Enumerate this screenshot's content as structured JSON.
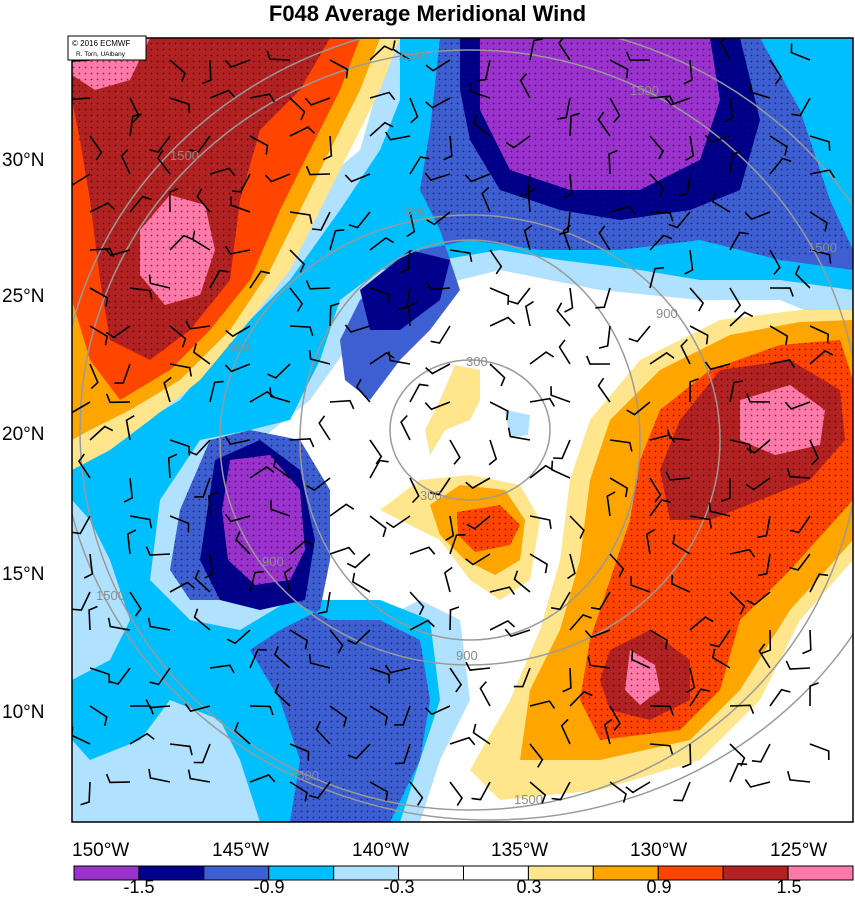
{
  "title": "F048 Average Meridional Wind",
  "credit": {
    "line1": "© 2016 ECMWF",
    "line2": "R. Torn, UAlbany"
  },
  "lat_labels": [
    "30°N",
    "25°N",
    "20°N",
    "15°N",
    "10°N"
  ],
  "lon_labels": [
    "150°W",
    "145°W",
    "140°W",
    "135°W",
    "130°W",
    "125°W"
  ],
  "colorbar": {
    "colors": [
      "#9a32cd",
      "#00008b",
      "#3d5fd1",
      "#00bfff",
      "#b0e2ff",
      "#ffffff",
      "#ffffff",
      "#ffe58c",
      "#ffa500",
      "#ff4500",
      "#b22222",
      "#ff7aa8"
    ],
    "tick_labels": [
      "-1.5",
      "-0.9",
      "-0.3",
      "0.3",
      "0.9",
      "1.5"
    ]
  },
  "contour_labels": [
    "300",
    "300",
    "900",
    "900",
    "900",
    "900",
    "900",
    "1500",
    "1500",
    "1500",
    "1500",
    "1500",
    "1500",
    "1500"
  ]
}
